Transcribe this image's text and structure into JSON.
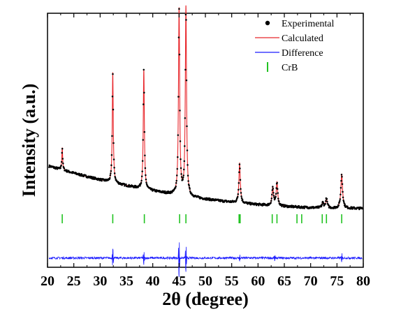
{
  "chart_data": {
    "type": "line",
    "xlabel": "2θ (degree)",
    "ylabel": "Intensity (a.u.)",
    "xlim": [
      20,
      80
    ],
    "x_ticks": [
      20,
      25,
      30,
      35,
      40,
      45,
      50,
      55,
      60,
      65,
      70,
      75,
      80
    ],
    "y_ticks_shown": false,
    "grid": false,
    "legend_position": "top-right",
    "colors": {
      "experimental": "#000000",
      "calculated": "#e8262b",
      "difference": "#1a1aff",
      "bragg": "#22c322"
    },
    "series": [
      {
        "name": "Experimental",
        "style": "points"
      },
      {
        "name": "Calculated",
        "style": "line"
      },
      {
        "name": "Difference",
        "style": "line"
      },
      {
        "name": "CrB",
        "style": "tick-marks"
      }
    ],
    "background": {
      "x": [
        20,
        80
      ],
      "intensity": [
        8.4,
        1.5
      ]
    },
    "peaks": [
      {
        "x": 22.8,
        "intensity": 3.6
      },
      {
        "x": 32.4,
        "intensity": 17.8
      },
      {
        "x": 38.3,
        "intensity": 19.3
      },
      {
        "x": 45.0,
        "intensity": 30.0
      },
      {
        "x": 46.3,
        "intensity": 30.5
      },
      {
        "x": 56.5,
        "intensity": 6.4
      },
      {
        "x": 62.8,
        "intensity": 2.9
      },
      {
        "x": 63.6,
        "intensity": 3.8
      },
      {
        "x": 72.3,
        "intensity": 0.8
      },
      {
        "x": 73.0,
        "intensity": 1.5
      },
      {
        "x": 75.9,
        "intensity": 5.5
      }
    ],
    "ylim_intensity": [
      -8,
      33
    ],
    "bragg_positions": [
      22.8,
      32.4,
      38.4,
      45.1,
      46.3,
      56.4,
      56.6,
      62.7,
      63.6,
      67.4,
      68.3,
      72.2,
      73.0,
      75.9
    ],
    "difference_offset": -6.5,
    "difference_spikes": [
      {
        "x": 32.4,
        "amp": 1.4
      },
      {
        "x": 38.3,
        "amp": 1.0
      },
      {
        "x": 45.0,
        "amp": 3.0
      },
      {
        "x": 46.3,
        "amp": 2.2
      },
      {
        "x": 56.5,
        "amp": 0.5
      },
      {
        "x": 63.2,
        "amp": 0.4
      },
      {
        "x": 75.9,
        "amp": 0.7
      }
    ]
  }
}
